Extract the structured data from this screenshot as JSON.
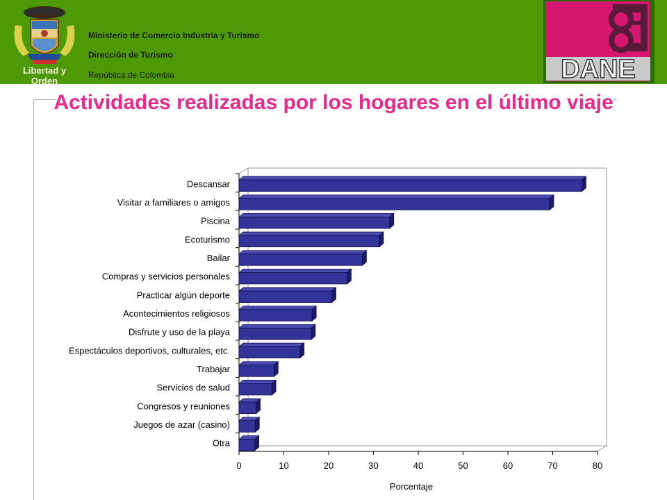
{
  "header": {
    "seal_text": "Libertad y Orden",
    "ministry_line1": "Ministerio de Comercio Industria y Turismo",
    "ministry_line2": "Dirección de Turismo",
    "ministry_line3": "República de Colombia",
    "logo_text": "DANE",
    "logo_color": "#d6176f",
    "band_color": "#4e9a06"
  },
  "title": "Actividades realizadas por los hogares en el último viaje",
  "chart_data": {
    "type": "bar",
    "orientation": "horizontal",
    "categories": [
      "Descansar",
      "Visitar a familiares o amigos",
      "Piscina",
      "Ecoturismo",
      "Bailar",
      "Compras y servicios personales",
      "Practicar algún deporte",
      "Acontecimientos religiosos",
      "Disfrute y uso de la playa",
      "Espectáculos deportivos, culturales, etc.",
      "Trabajar",
      "Servicios de salud",
      "Congresos y reuniones",
      "Juegos de azar (casino)",
      "Otra"
    ],
    "values": [
      76.5,
      69.3,
      33.6,
      31.3,
      27.5,
      24.1,
      20.7,
      16.3,
      16.1,
      13.6,
      7.8,
      7.3,
      3.8,
      3.6,
      3.5
    ],
    "xlabel": "Porcentaje",
    "ylabel": "",
    "xlim": [
      0,
      80
    ],
    "xticks": [
      "0",
      "10",
      "20",
      "30",
      "40",
      "50",
      "60",
      "70",
      "80"
    ],
    "bar_color": "#33339a",
    "grid": false,
    "style": "3d"
  }
}
